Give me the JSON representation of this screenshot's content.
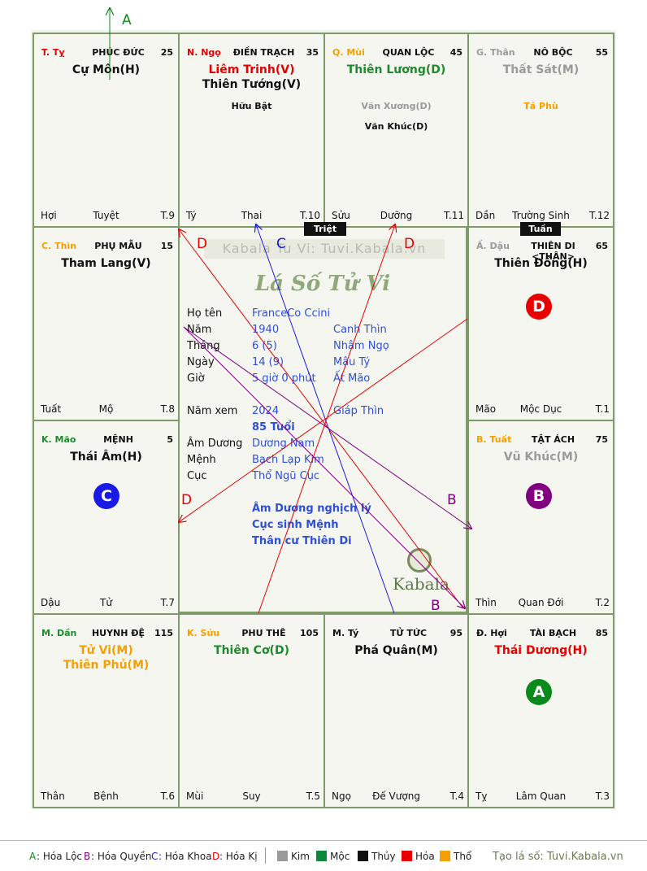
{
  "watermark": "Kabala Tu Vi: Tuvi.Kabala.vn",
  "center_logo": "Lá Số Tử Vi",
  "brand": "Kabala",
  "arrow_top_label": "A",
  "tags": {
    "triet": "Triệt",
    "tuan": "Tuần"
  },
  "palaces": [
    {
      "branch": "T. Tỵ",
      "branch_color": "#e60000",
      "name": "PHÚC ĐỨC",
      "num": "25",
      "stars": [
        {
          "text": "Cự Môn(H)",
          "color": "#111111"
        }
      ],
      "minor": [],
      "bottom": {
        "left": "Hợi",
        "center": "Tuyệt",
        "right": "T.9"
      }
    },
    {
      "branch": "N. Ngọ",
      "branch_color": "#e60000",
      "name": "ĐIỀN TRẠCH",
      "num": "35",
      "stars": [
        {
          "text": "Liêm Trinh(V)",
          "color": "#e60000"
        },
        {
          "text": "Thiên Tướng(V)",
          "color": "#111111"
        }
      ],
      "minor": [
        {
          "text": "Hữu Bật",
          "color": "#111111"
        }
      ],
      "bottom": {
        "left": "Tý",
        "center": "Thai",
        "right": "T.10"
      }
    },
    {
      "branch": "Q. Mùi",
      "branch_color": "#f5a000",
      "name": "QUAN LỘC",
      "num": "45",
      "stars": [
        {
          "text": "Thiên Lương(D)",
          "color": "#1e8a2e"
        }
      ],
      "minor": [
        {
          "text": "Văn Xương(D)",
          "color": "#9a9a9a"
        },
        {
          "text": "Văn Khúc(D)",
          "color": "#111111"
        }
      ],
      "bottom": {
        "left": "Sửu",
        "center": "Dưỡng",
        "right": "T.11"
      }
    },
    {
      "branch": "G. Thân",
      "branch_color": "#9a9a9a",
      "name": "NÔ BỘC",
      "num": "55",
      "stars": [
        {
          "text": "Thất Sát(M)",
          "color": "#9a9a9a"
        }
      ],
      "minor": [
        {
          "text": "Tả Phù",
          "color": "#f5a000"
        }
      ],
      "bottom": {
        "left": "Dần",
        "center": "Trường Sinh",
        "right": "T.12"
      }
    },
    {
      "branch": "C. Thìn",
      "branch_color": "#f5a000",
      "name": "PHỤ MẪU",
      "num": "15",
      "stars": [
        {
          "text": "Tham Lang(V)",
          "color": "#111111"
        }
      ],
      "minor": [],
      "bottom": {
        "left": "Tuất",
        "center": "Mộ",
        "right": "T.8"
      }
    },
    {
      "branch": "Ấ. Dậu",
      "branch_color": "#9a9a9a",
      "name": "THIÊN DI <THÂN>",
      "num": "65",
      "stars": [
        {
          "text": "Thiên Đồng(H)",
          "color": "#111111"
        }
      ],
      "minor": [],
      "bottom": {
        "left": "Mão",
        "center": "Mộc Dục",
        "right": "T.1"
      }
    },
    {
      "branch": "K. Mão",
      "branch_color": "#1e8a2e",
      "name": "MỆNH",
      "num": "5",
      "stars": [
        {
          "text": "Thái Âm(H)",
          "color": "#111111"
        }
      ],
      "minor": [],
      "bottom": {
        "left": "Dậu",
        "center": "Tử",
        "right": "T.7"
      }
    },
    {
      "branch": "B. Tuất",
      "branch_color": "#f5a000",
      "name": "TẬT ÁCH",
      "num": "75",
      "stars": [
        {
          "text": "Vũ Khúc(M)",
          "color": "#9a9a9a"
        }
      ],
      "minor": [],
      "bottom": {
        "left": "Thìn",
        "center": "Quan Đới",
        "right": "T.2"
      }
    },
    {
      "branch": "M. Dần",
      "branch_color": "#1e8a2e",
      "name": "HUYNH ĐỆ",
      "num": "115",
      "stars": [
        {
          "text": "Tử Vi(M)",
          "color": "#f5a000"
        },
        {
          "text": "Thiên Phủ(M)",
          "color": "#f5a000"
        }
      ],
      "minor": [],
      "bottom": {
        "left": "Thân",
        "center": "Bệnh",
        "right": "T.6"
      }
    },
    {
      "branch": "K. Sửu",
      "branch_color": "#f5a000",
      "name": "PHU THÊ",
      "num": "105",
      "stars": [
        {
          "text": "Thiên Cơ(D)",
          "color": "#1e8a2e"
        }
      ],
      "minor": [],
      "bottom": {
        "left": "Mùi",
        "center": "Suy",
        "right": "T.5"
      }
    },
    {
      "branch": "M. Tý",
      "branch_color": "#111111",
      "name": "TỬ TỨC",
      "num": "95",
      "stars": [
        {
          "text": "Phá Quân(M)",
          "color": "#111111"
        }
      ],
      "minor": [],
      "bottom": {
        "left": "Ngọ",
        "center": "Đế Vượng",
        "right": "T.4"
      }
    },
    {
      "branch": "Đ. Hợi",
      "branch_color": "#111111",
      "name": "TÀI BẠCH",
      "num": "85",
      "stars": [
        {
          "text": "Thái Dương(H)",
          "color": "#e60000"
        }
      ],
      "minor": [],
      "bottom": {
        "left": "Tỵ",
        "center": "Lâm Quan",
        "right": "T.3"
      }
    }
  ],
  "circles": [
    {
      "letter": "D",
      "color": "#e60000"
    },
    {
      "letter": "C",
      "color": "#1a1ae6"
    },
    {
      "letter": "B",
      "color": "#800080"
    },
    {
      "letter": "A",
      "color": "#0a8a1a"
    }
  ],
  "info": [
    {
      "label": "Họ tên",
      "value": "FranceCo Ccini",
      "extra": ""
    },
    {
      "label": "Năm",
      "value": "1940",
      "extra": "Canh Thìn"
    },
    {
      "label": "Tháng",
      "value": "6  (5)",
      "extra": "Nhâm Ngọ"
    },
    {
      "label": "Ngày",
      "value": "14  (9)",
      "extra": "Mậu Tý"
    },
    {
      "label": "Giờ",
      "value": "5 giờ 0 phút",
      "extra": "Ất Mão"
    },
    {
      "label": "Năm xem",
      "value": "2024",
      "extra": "Giáp Thìn"
    },
    {
      "label": "",
      "value": "85 Tuổi",
      "extra": ""
    },
    {
      "label": "Âm Dương",
      "value": "Dương Nam",
      "extra": ""
    },
    {
      "label": "Mệnh",
      "value": "Bạch Lạp Kim",
      "extra": ""
    },
    {
      "label": "Cục",
      "value": "Thổ Ngũ Cục",
      "extra": ""
    }
  ],
  "notes": [
    "Âm Dương nghịch lý",
    "Cục sinh Mệnh",
    "Thân cư Thiên Di"
  ],
  "line_labels": {
    "d1": "D",
    "c1": "C",
    "d2": "D",
    "d3": "D",
    "b1": "B",
    "b2": "B"
  },
  "legend": {
    "items": [
      {
        "key": "A",
        "text": ": Hóa Lộc",
        "color": "#0a8a1a"
      },
      {
        "key": "B",
        "text": ": Hóa Quyền",
        "color": "#800080"
      },
      {
        "key": "C",
        "text": ": Hóa Khoa",
        "color": "#1a1ae6"
      },
      {
        "key": "D",
        "text": ": Hóa Kị",
        "color": "#e60000"
      }
    ],
    "elements": [
      {
        "name": "Kim",
        "color": "#999999"
      },
      {
        "name": "Mộc",
        "color": "#0a8a3a"
      },
      {
        "name": "Thủy",
        "color": "#111111"
      },
      {
        "name": "Hỏa",
        "color": "#e60000"
      },
      {
        "name": "Thổ",
        "color": "#f5a000"
      }
    ],
    "credit": "Tạo lá số: Tuvi.Kabala.vn"
  }
}
